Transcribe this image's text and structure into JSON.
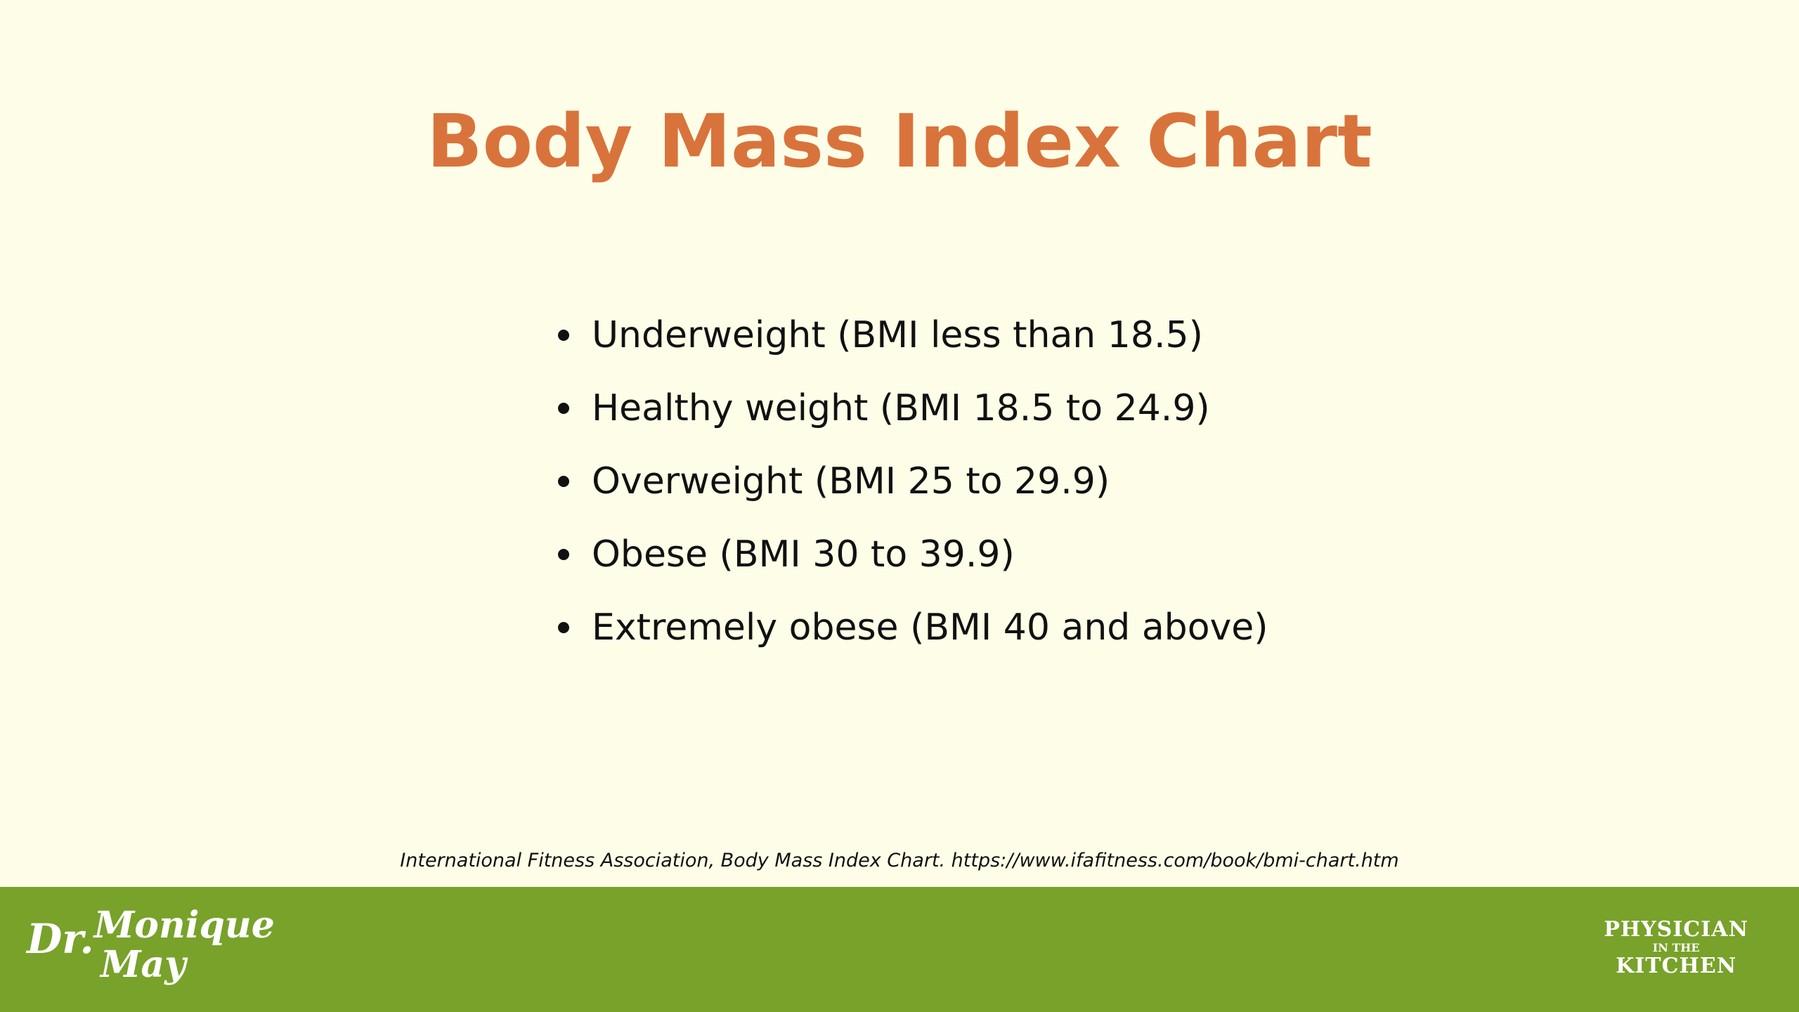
{
  "header": {
    "title": "Body Mass Index Chart"
  },
  "list": {
    "items": [
      "Underweight (BMI less than 18.5)",
      "Healthy weight (BMI 18.5 to 24.9)",
      "Overweight (BMI 25 to 29.9)",
      "Obese (BMI 30 to 39.9)",
      "Extremely obese (BMI 40 and above)"
    ]
  },
  "citation": "International Fitness Association, Body Mass Index Chart. https://www.ifafitness.com/book/bmi-chart.htm",
  "footer": {
    "left_logo": {
      "prefix": "Dr.",
      "first": "Monique",
      "last": "May"
    },
    "right_logo": {
      "line1": "PHYSICIAN",
      "line2": "IN THE",
      "line3": "KITCHEN"
    }
  }
}
